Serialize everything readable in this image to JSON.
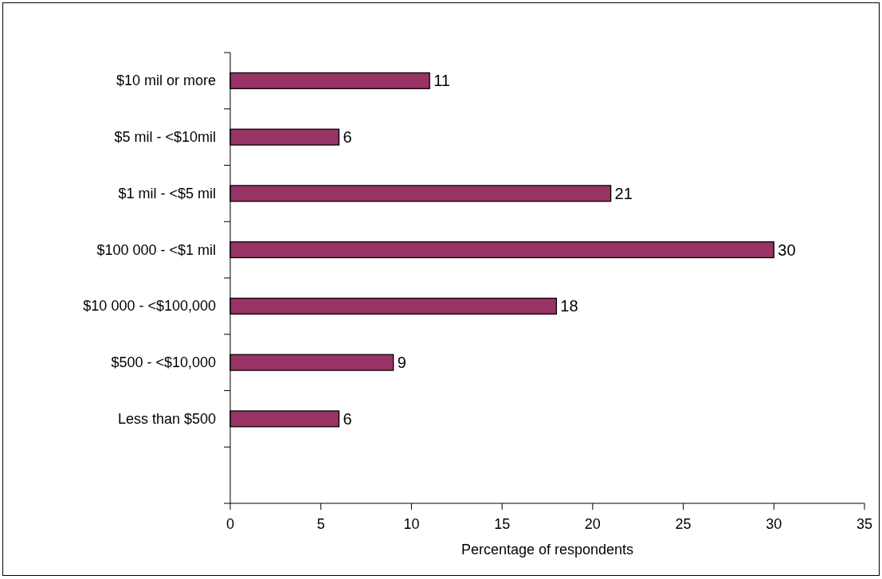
{
  "chart_data": {
    "type": "bar",
    "orientation": "horizontal",
    "xlabel": "Percentage of respondents",
    "categories": [
      "$10 mil or more",
      "$5 mil - <$10mil",
      "$1 mil - <$5 mil",
      "$100 000 - <$1 mil",
      "$10 000 - <$100,000",
      "$500 - <$10,000",
      "Less than $500",
      null
    ],
    "values": [
      11,
      6,
      21,
      30,
      18,
      9,
      6,
      null
    ],
    "color": "#993366",
    "data_labels": true,
    "xlim": [
      0,
      35
    ],
    "xticks": [
      0,
      5,
      10,
      15,
      20,
      25,
      30,
      35
    ],
    "grid": false
  }
}
